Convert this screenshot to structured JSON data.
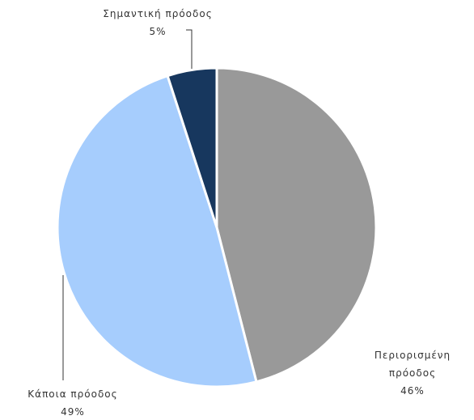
{
  "chart_data": {
    "type": "pie",
    "categories": [
      "Περιορισμένη πρόοδος",
      "Κάποια πρόοδος",
      "Σημαντική πρόοδος"
    ],
    "values": [
      46,
      49,
      5
    ],
    "value_labels": [
      "46%",
      "49%",
      "5%"
    ],
    "colors": [
      "#999999",
      "#a6cdfd",
      "#17375e"
    ]
  }
}
